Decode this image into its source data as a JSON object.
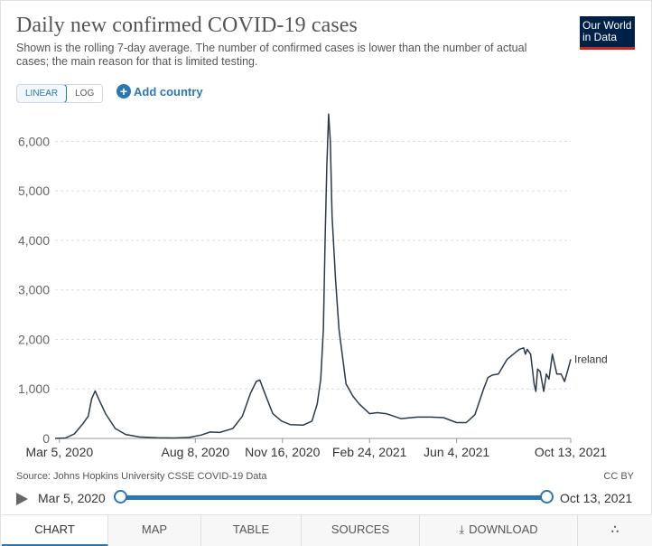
{
  "header": {
    "title": "Daily new confirmed COVID-19 cases",
    "subtitle": "Shown is the rolling 7-day average. The number of confirmed cases is lower than the number of actual cases; the main reason for that is limited testing.",
    "logo_line1": "Our World",
    "logo_line2": "in Data"
  },
  "controls": {
    "scale_linear": "LINEAR",
    "scale_log": "LOG",
    "add_country": "Add country"
  },
  "colors": {
    "accent": "#2a77b5",
    "line": "#2b3a4a",
    "logo_bg": "#002147",
    "logo_bar": "#ce261e"
  },
  "chart_data": {
    "type": "line",
    "title": "Daily new confirmed COVID-19 cases",
    "xlabel": "",
    "ylabel": "",
    "ylim": [
      0,
      6500
    ],
    "yticks": [
      0,
      1000,
      2000,
      3000,
      4000,
      5000,
      6000
    ],
    "ytick_labels": [
      "0",
      "1,000",
      "2,000",
      "3,000",
      "4,000",
      "5,000",
      "6,000"
    ],
    "xlim": [
      "2020-02-29",
      "2021-10-13"
    ],
    "xticks": [
      "2020-03-05",
      "2020-08-08",
      "2020-11-16",
      "2021-02-24",
      "2021-06-04",
      "2021-10-13"
    ],
    "xtick_labels": [
      "Mar 5, 2020",
      "Aug 8, 2020",
      "Nov 16, 2020",
      "Feb 24, 2021",
      "Jun 4, 2021",
      "Oct 13, 2021"
    ],
    "grid": "horizontal",
    "series": [
      {
        "name": "Ireland",
        "x": [
          "2020-02-29",
          "2020-03-12",
          "2020-03-22",
          "2020-04-01",
          "2020-04-07",
          "2020-04-11",
          "2020-04-15",
          "2020-04-19",
          "2020-04-27",
          "2020-05-08",
          "2020-05-20",
          "2020-06-05",
          "2020-06-25",
          "2020-07-15",
          "2020-08-01",
          "2020-08-15",
          "2020-08-25",
          "2020-09-05",
          "2020-09-20",
          "2020-10-01",
          "2020-10-10",
          "2020-10-17",
          "2020-10-21",
          "2020-10-27",
          "2020-11-05",
          "2020-11-15",
          "2020-11-25",
          "2020-12-10",
          "2020-12-20",
          "2020-12-26",
          "2020-12-30",
          "2021-01-02",
          "2021-01-04",
          "2021-01-06",
          "2021-01-08",
          "2021-01-10",
          "2021-01-12",
          "2021-01-16",
          "2021-01-20",
          "2021-01-28",
          "2021-02-05",
          "2021-02-12",
          "2021-02-24",
          "2021-03-05",
          "2021-03-15",
          "2021-04-01",
          "2021-04-20",
          "2021-05-05",
          "2021-05-20",
          "2021-06-04",
          "2021-06-15",
          "2021-06-25",
          "2021-07-05",
          "2021-07-10",
          "2021-07-15",
          "2021-07-22",
          "2021-08-01",
          "2021-08-08",
          "2021-08-15",
          "2021-08-20",
          "2021-08-22",
          "2021-08-24",
          "2021-08-28",
          "2021-09-01",
          "2021-09-03",
          "2021-09-05",
          "2021-09-08",
          "2021-09-12",
          "2021-09-15",
          "2021-09-18",
          "2021-09-22",
          "2021-09-27",
          "2021-10-02",
          "2021-10-06",
          "2021-10-10",
          "2021-10-13"
        ],
        "y": [
          0,
          10,
          90,
          300,
          450,
          800,
          960,
          800,
          500,
          200,
          80,
          30,
          15,
          10,
          20,
          70,
          130,
          120,
          200,
          450,
          900,
          1150,
          1180,
          900,
          500,
          350,
          280,
          270,
          350,
          700,
          1200,
          2200,
          4000,
          5500,
          6550,
          6000,
          4500,
          3200,
          2200,
          1100,
          850,
          700,
          500,
          520,
          500,
          400,
          430,
          430,
          420,
          320,
          320,
          480,
          1000,
          1230,
          1280,
          1300,
          1600,
          1700,
          1800,
          1830,
          1700,
          1800,
          1700,
          1100,
          950,
          1400,
          1350,
          950,
          1300,
          1200,
          1700,
          1300,
          1300,
          1150,
          1400,
          1600
        ]
      }
    ]
  },
  "footer": {
    "source": "Source: Johns Hopkins University CSSE COVID-19 Data",
    "license": "CC BY",
    "timeline_start": "Mar 5, 2020",
    "timeline_end": "Oct 13, 2021"
  },
  "tabs": [
    {
      "label": "CHART",
      "name": "tab-chart",
      "active": true
    },
    {
      "label": "MAP",
      "name": "tab-map"
    },
    {
      "label": "TABLE",
      "name": "tab-table"
    },
    {
      "label": "SOURCES",
      "name": "tab-sources"
    },
    {
      "label": "DOWNLOAD",
      "name": "tab-download",
      "icon": "download-icon"
    },
    {
      "label": "",
      "name": "tab-share",
      "icon": "share-icon"
    }
  ]
}
